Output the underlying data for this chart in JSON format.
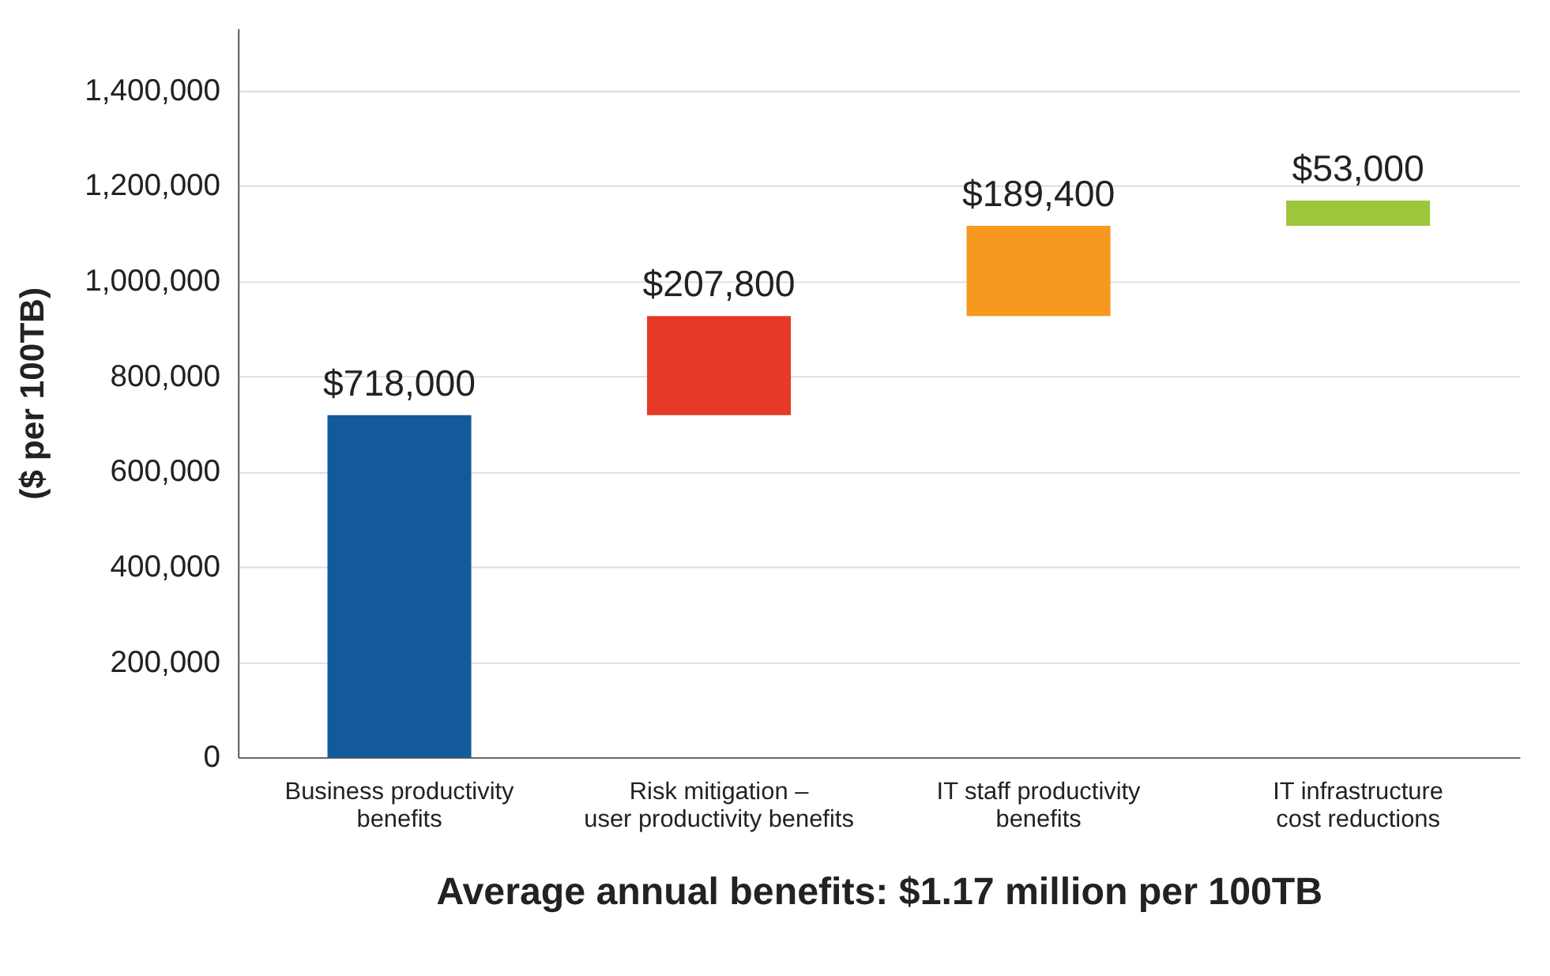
{
  "chart_data": {
    "type": "bar",
    "xlabel": "Average annual benefits: $1.17 million per 100TB",
    "ylabel": "($ per 100TB)",
    "categories": [
      "Business productivity\nbenefits",
      "Risk mitigation –\nuser productivity benefits",
      "IT staff productivity\nbenefits",
      "IT infrastructure\ncost reductions"
    ],
    "values": [
      718000,
      207800,
      189400,
      53000
    ],
    "base": [
      0,
      718000,
      925800,
      1115200
    ],
    "colors": [
      "#125a9c",
      "#e63a27",
      "#f7981f",
      "#9ec63b"
    ],
    "value_labels": [
      "$718,000",
      "$207,800",
      "$189,400",
      "$53,000"
    ],
    "ylim": [
      0,
      1530000
    ],
    "yticks": [
      0,
      {
        "value": 200000,
        "label": "200,000"
      },
      {
        "value": 400000,
        "label": "400,000"
      },
      {
        "value": 600000,
        "label": "600,000"
      },
      {
        "value": 800000,
        "label": "800,000"
      },
      {
        "value": 1000000,
        "label": "1,000,000"
      },
      {
        "value": 1200000,
        "label": "1,200,000"
      },
      {
        "value": 1400000,
        "label": "1,400,000"
      }
    ],
    "grid": "y"
  }
}
